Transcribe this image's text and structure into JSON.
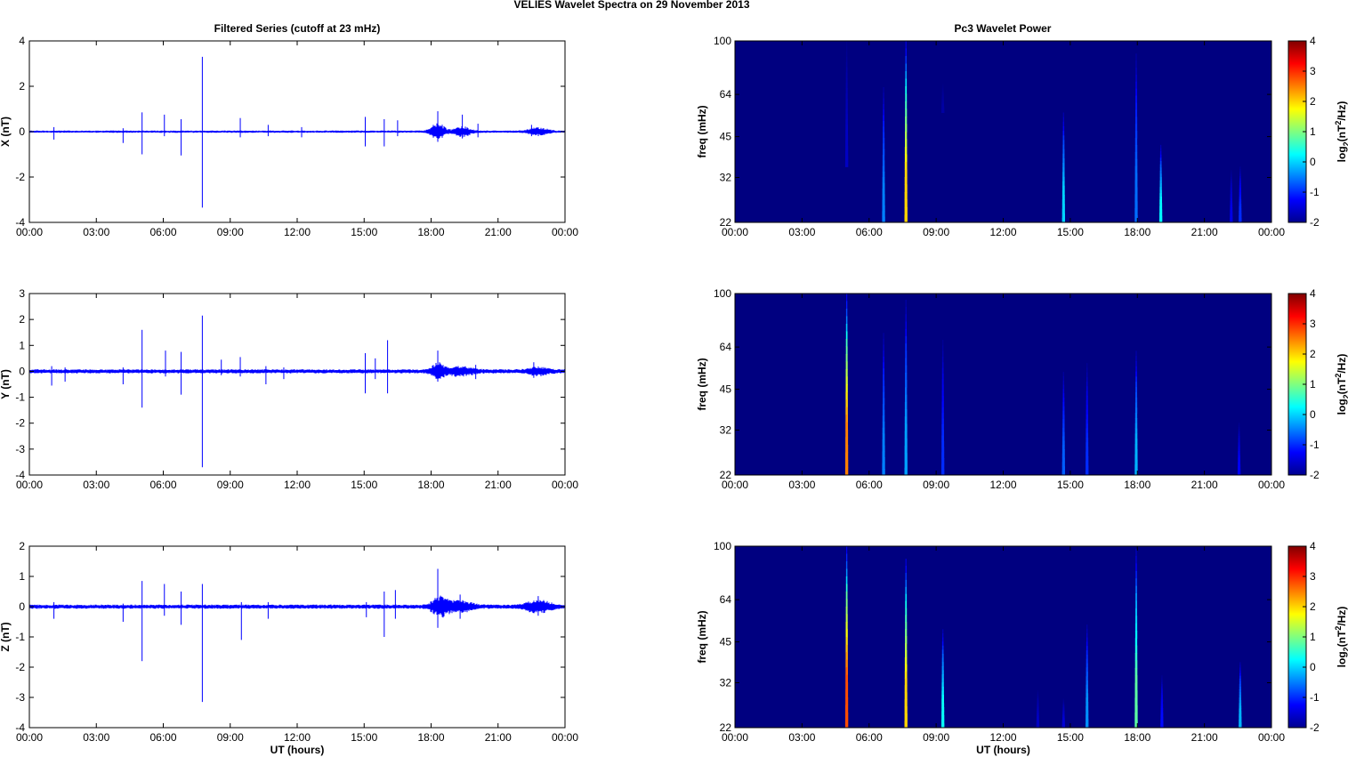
{
  "suptitle": "VELIES Wavelet Spectra on 29 November  2013",
  "left_title": "Filtered Series (cutoff at 23 mHz)",
  "right_title": "Pc3 Wavelet Power",
  "xlabel": "UT (hours)",
  "time_ticks": [
    "00:00",
    "03:00",
    "06:00",
    "09:00",
    "12:00",
    "15:00",
    "18:00",
    "21:00",
    "00:00"
  ],
  "freq_label": "freq (mHz)",
  "freq_ticks": [
    "100",
    "64",
    "45",
    "32",
    "22"
  ],
  "colorbar_label": "log2(nT2/Hz)",
  "colorbar_ticks": [
    "4",
    "3",
    "2",
    "1",
    "0",
    "-1",
    "-2"
  ],
  "series_color": "#0000ff",
  "colormap": "jet",
  "chart_data": [
    {
      "type": "line",
      "title": "Filtered Series (cutoff at 23 mHz)",
      "ylabel": "X (nT)",
      "xlabel": "",
      "xlim": [
        0,
        24
      ],
      "ylim": [
        -4,
        4
      ],
      "yticks": [
        4,
        2,
        0,
        -2,
        -4
      ],
      "noise": 0.05,
      "spikes": [
        {
          "t": 1.1,
          "min": -0.35,
          "max": 0.2
        },
        {
          "t": 4.2,
          "min": -0.5,
          "max": 0.15
        },
        {
          "t": 5.05,
          "min": -1.0,
          "max": 0.85
        },
        {
          "t": 6.05,
          "min": -0.2,
          "max": 0.75
        },
        {
          "t": 6.8,
          "min": -1.05,
          "max": 0.55
        },
        {
          "t": 7.75,
          "min": -3.35,
          "max": 3.3
        },
        {
          "t": 9.45,
          "min": -0.25,
          "max": 0.6
        },
        {
          "t": 10.7,
          "min": -0.2,
          "max": 0.3
        },
        {
          "t": 12.2,
          "min": -0.25,
          "max": 0.2
        },
        {
          "t": 15.05,
          "min": -0.65,
          "max": 0.65
        },
        {
          "t": 15.9,
          "min": -0.65,
          "max": 0.55
        },
        {
          "t": 16.5,
          "min": -0.2,
          "max": 0.5
        },
        {
          "t": 18.3,
          "min": -0.45,
          "max": 0.9
        },
        {
          "t": 19.4,
          "min": -0.3,
          "max": 0.75
        },
        {
          "t": 20.1,
          "min": -0.25,
          "max": 0.35
        },
        {
          "t": 22.5,
          "min": -0.2,
          "max": 0.3
        }
      ],
      "bursts": [
        {
          "t": 18.3,
          "width": 0.35,
          "amp": 0.35
        },
        {
          "t": 19.4,
          "width": 0.4,
          "amp": 0.2
        },
        {
          "t": 22.8,
          "width": 0.5,
          "amp": 0.15
        }
      ]
    },
    {
      "type": "line",
      "title": "",
      "ylabel": "Y (nT)",
      "xlabel": "",
      "xlim": [
        0,
        24
      ],
      "ylim": [
        -4,
        3
      ],
      "yticks": [
        3,
        2,
        1,
        0,
        -1,
        -2,
        -3,
        -4
      ],
      "noise": 0.08,
      "spikes": [
        {
          "t": 1.0,
          "min": -0.55,
          "max": 0.2
        },
        {
          "t": 1.6,
          "min": -0.4,
          "max": 0.15
        },
        {
          "t": 4.2,
          "min": -0.5,
          "max": 0.15
        },
        {
          "t": 5.05,
          "min": -1.4,
          "max": 1.6
        },
        {
          "t": 6.1,
          "min": -0.2,
          "max": 0.8
        },
        {
          "t": 6.8,
          "min": -0.9,
          "max": 0.75
        },
        {
          "t": 7.75,
          "min": -3.7,
          "max": 2.15
        },
        {
          "t": 8.6,
          "min": -0.15,
          "max": 0.45
        },
        {
          "t": 9.45,
          "min": -0.2,
          "max": 0.55
        },
        {
          "t": 10.6,
          "min": -0.5,
          "max": 0.2
        },
        {
          "t": 11.4,
          "min": -0.3,
          "max": 0.15
        },
        {
          "t": 15.05,
          "min": -0.85,
          "max": 0.7
        },
        {
          "t": 15.5,
          "min": -0.3,
          "max": 0.5
        },
        {
          "t": 16.05,
          "min": -0.85,
          "max": 1.2
        },
        {
          "t": 18.3,
          "min": -0.4,
          "max": 0.8
        },
        {
          "t": 20.0,
          "min": -0.3,
          "max": 0.25
        },
        {
          "t": 22.6,
          "min": -0.25,
          "max": 0.35
        }
      ],
      "bursts": [
        {
          "t": 18.3,
          "width": 0.3,
          "amp": 0.3
        },
        {
          "t": 19.3,
          "width": 0.6,
          "amp": 0.15
        },
        {
          "t": 22.8,
          "width": 0.5,
          "amp": 0.12
        }
      ]
    },
    {
      "type": "line",
      "title": "",
      "ylabel": "Z (nT)",
      "xlabel": "UT (hours)",
      "xlim": [
        0,
        24
      ],
      "ylim": [
        -4,
        2
      ],
      "yticks": [
        2,
        1,
        0,
        -1,
        -2,
        -3,
        -4
      ],
      "noise": 0.07,
      "spikes": [
        {
          "t": 1.1,
          "min": -0.4,
          "max": 0.15
        },
        {
          "t": 4.2,
          "min": -0.5,
          "max": 0.1
        },
        {
          "t": 5.05,
          "min": -1.8,
          "max": 0.85
        },
        {
          "t": 6.05,
          "min": -0.3,
          "max": 0.75
        },
        {
          "t": 6.8,
          "min": -0.6,
          "max": 0.5
        },
        {
          "t": 7.75,
          "min": -3.15,
          "max": 0.75
        },
        {
          "t": 9.5,
          "min": -1.1,
          "max": 0.15
        },
        {
          "t": 10.7,
          "min": -0.4,
          "max": 0.15
        },
        {
          "t": 15.1,
          "min": -0.35,
          "max": 0.15
        },
        {
          "t": 15.9,
          "min": -1.0,
          "max": 0.5
        },
        {
          "t": 16.4,
          "min": -0.4,
          "max": 0.55
        },
        {
          "t": 18.3,
          "min": -0.7,
          "max": 1.25
        },
        {
          "t": 19.3,
          "min": -0.4,
          "max": 0.4
        },
        {
          "t": 22.8,
          "min": -0.3,
          "max": 0.35
        }
      ],
      "bursts": [
        {
          "t": 18.4,
          "width": 0.4,
          "amp": 0.3
        },
        {
          "t": 19.3,
          "width": 0.6,
          "amp": 0.15
        },
        {
          "t": 22.8,
          "width": 0.6,
          "amp": 0.18
        }
      ]
    },
    {
      "type": "heatmap",
      "title": "Pc3 Wavelet Power",
      "ylabel": "freq (mHz)",
      "xlabel": "",
      "xlim": [
        0,
        24
      ],
      "ylim": [
        22,
        100
      ],
      "yticks": [
        100,
        64,
        45,
        32,
        22
      ],
      "clim": [
        -2,
        4
      ],
      "colorbar_label": "log2(nT2/Hz)",
      "background": -2,
      "streaks": [
        {
          "t": 5.0,
          "fmax": 100,
          "fmin": 35,
          "peak": -1.6
        },
        {
          "t": 6.65,
          "fmax": 68,
          "fmin": 22,
          "peak": -0.5
        },
        {
          "t": 7.65,
          "fmax": 100,
          "fmin": 22,
          "peak": 2.0
        },
        {
          "t": 9.3,
          "fmax": 70,
          "fmin": 55,
          "peak": -1.8
        },
        {
          "t": 14.7,
          "fmax": 55,
          "fmin": 22,
          "peak": 0.0
        },
        {
          "t": 17.95,
          "fmax": 90,
          "fmin": 22,
          "peak": -0.6
        },
        {
          "t": 19.05,
          "fmax": 42,
          "fmin": 22,
          "peak": 0.2
        },
        {
          "t": 22.2,
          "fmax": 34,
          "fmin": 22,
          "peak": -1.4
        },
        {
          "t": 22.6,
          "fmax": 35,
          "fmin": 22,
          "peak": -1.0
        }
      ]
    },
    {
      "type": "heatmap",
      "title": "",
      "ylabel": "freq (mHz)",
      "xlabel": "",
      "xlim": [
        0,
        24
      ],
      "ylim": [
        22,
        100
      ],
      "yticks": [
        100,
        64,
        45,
        32,
        22
      ],
      "clim": [
        -2,
        4
      ],
      "colorbar_label": "log2(nT2/Hz)",
      "background": -2,
      "streaks": [
        {
          "t": 5.0,
          "fmax": 100,
          "fmin": 22,
          "peak": 2.5
        },
        {
          "t": 6.65,
          "fmax": 72,
          "fmin": 22,
          "peak": -0.5
        },
        {
          "t": 7.65,
          "fmax": 95,
          "fmin": 22,
          "peak": -0.3
        },
        {
          "t": 9.3,
          "fmax": 68,
          "fmin": 22,
          "peak": -1.0
        },
        {
          "t": 14.7,
          "fmax": 52,
          "fmin": 22,
          "peak": -0.7
        },
        {
          "t": 15.75,
          "fmax": 56,
          "fmin": 22,
          "peak": -1.0
        },
        {
          "t": 17.95,
          "fmax": 62,
          "fmin": 22,
          "peak": -0.2
        },
        {
          "t": 22.55,
          "fmax": 34,
          "fmin": 22,
          "peak": -1.3
        }
      ]
    },
    {
      "type": "heatmap",
      "title": "",
      "ylabel": "freq (mHz)",
      "xlabel": "UT (hours)",
      "xlim": [
        0,
        24
      ],
      "ylim": [
        22,
        100
      ],
      "yticks": [
        100,
        64,
        45,
        32,
        22
      ],
      "clim": [
        -2,
        4
      ],
      "colorbar_label": "log2(nT2/Hz)",
      "background": -2,
      "streaks": [
        {
          "t": 5.0,
          "fmax": 100,
          "fmin": 22,
          "peak": 2.8
        },
        {
          "t": 7.65,
          "fmax": 90,
          "fmin": 22,
          "peak": 2.0
        },
        {
          "t": 9.3,
          "fmax": 50,
          "fmin": 22,
          "peak": 0.3
        },
        {
          "t": 13.55,
          "fmax": 30,
          "fmin": 22,
          "peak": -1.6
        },
        {
          "t": 14.7,
          "fmax": 28,
          "fmin": 22,
          "peak": -1.5
        },
        {
          "t": 15.75,
          "fmax": 52,
          "fmin": 22,
          "peak": -0.4
        },
        {
          "t": 17.95,
          "fmax": 98,
          "fmin": 22,
          "peak": 0.8
        },
        {
          "t": 19.1,
          "fmax": 34,
          "fmin": 22,
          "peak": -1.2
        },
        {
          "t": 22.6,
          "fmax": 38,
          "fmin": 22,
          "peak": -0.2
        }
      ]
    }
  ]
}
